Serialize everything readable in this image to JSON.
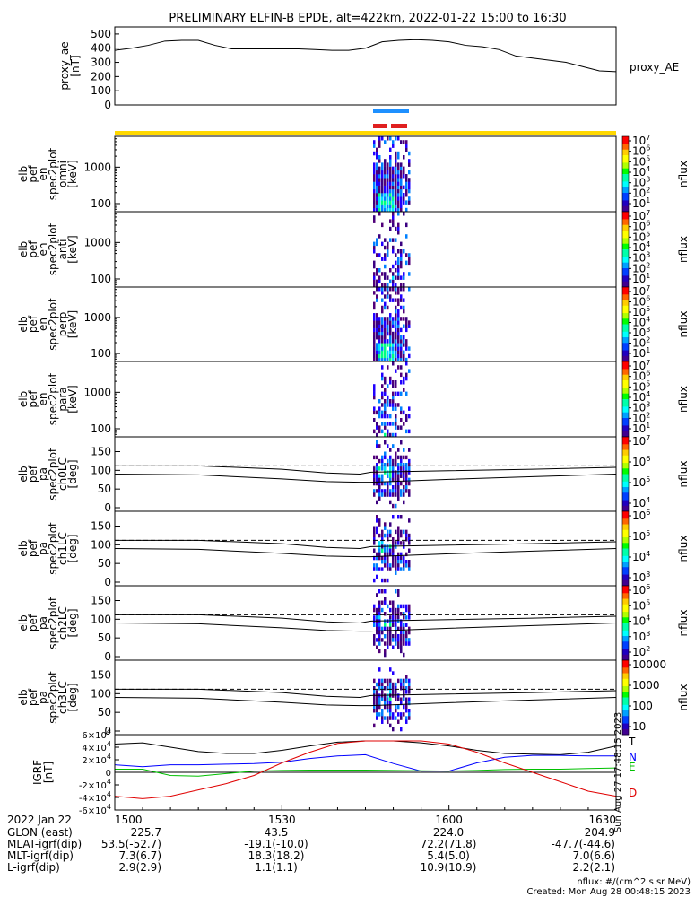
{
  "title": "PRELIMINARY ELFIN-B EPDE, alt=422km, 2022-01-22 15:00 to 16:30",
  "footer": {
    "date_label": "2022 Jan 22",
    "rows": [
      {
        "label": "GLON (east)",
        "values": [
          "225.7",
          "43.5",
          "224.0",
          "204.9"
        ]
      },
      {
        "label": "MLAT-igrf(dip)",
        "values": [
          "53.5(-52.7)",
          "-19.1(-10.0)",
          "72.2(71.8)",
          "-47.7(-44.6)"
        ]
      },
      {
        "label": "MLT-igrf(dip)",
        "values": [
          "7.3(6.7)",
          "18.3(18.2)",
          "5.4(5.0)",
          "7.0(6.6)"
        ]
      },
      {
        "label": "L-igrf(dip)",
        "values": [
          "2.9(2.9)",
          "1.1(1.1)",
          "10.9(10.9)",
          "2.2(2.1)"
        ]
      }
    ],
    "time_ticks": [
      "1500",
      "1530",
      "1600",
      "1630"
    ],
    "nflux_units": "nflux: #/(cm^2 s sr MeV)",
    "created": "Created: Mon Aug 28 00:48:15 2023",
    "side_stamp": "Sun Aug 27 17:48:15 2023"
  },
  "colors": {
    "orbit_bar": "#ffd800",
    "blue_bar": "#1e90ff",
    "red_bar": "#e02020",
    "igrf_t": "#000000",
    "igrf_n": "#0000ff",
    "igrf_e": "#00c000",
    "igrf_d": "#e00000"
  },
  "chart_data": [
    {
      "type": "line",
      "panel": "proxy_ae",
      "ylabel": [
        "proxy_ae",
        "[nT]"
      ],
      "legend": "proxy_AE",
      "yticks": [
        "500",
        "400",
        "300",
        "200",
        "100",
        "0"
      ],
      "ylim": [
        0,
        550
      ],
      "x_minutes": [
        0,
        3,
        6,
        9,
        12,
        15,
        18,
        21,
        24,
        27,
        30,
        33,
        36,
        39,
        42,
        45,
        48,
        51,
        54,
        57,
        60,
        63,
        66,
        69,
        72,
        75,
        78,
        81,
        84,
        87,
        90
      ],
      "values": [
        385,
        400,
        420,
        450,
        455,
        455,
        420,
        395,
        395,
        395,
        395,
        395,
        390,
        385,
        385,
        400,
        445,
        455,
        460,
        455,
        445,
        420,
        410,
        390,
        345,
        330,
        315,
        300,
        270,
        240,
        235
      ]
    },
    {
      "type": "heatmap",
      "panel": "omni",
      "ylabel": [
        "elb",
        "pef",
        "en",
        "spec2plot",
        "omni",
        "[keV]"
      ],
      "yticks": [
        "1000",
        "100"
      ],
      "colorbar": {
        "label": "nflux",
        "ticks": [
          "10^7",
          "10^6",
          "10^5",
          "10^4",
          "10^3",
          "10^2",
          "10^1"
        ]
      }
    },
    {
      "type": "heatmap",
      "panel": "anti",
      "ylabel": [
        "elb",
        "pef",
        "en",
        "spec2plot",
        "anti",
        "[keV]"
      ],
      "yticks": [
        "1000",
        "100"
      ],
      "colorbar": {
        "label": "nflux",
        "ticks": [
          "10^7",
          "10^6",
          "10^5",
          "10^4",
          "10^3",
          "10^2",
          "10^1"
        ]
      }
    },
    {
      "type": "heatmap",
      "panel": "perp",
      "ylabel": [
        "elb",
        "pef",
        "en",
        "spec2plot",
        "perp",
        "[keV]"
      ],
      "yticks": [
        "1000",
        "100"
      ],
      "colorbar": {
        "label": "nflux",
        "ticks": [
          "10^7",
          "10^6",
          "10^5",
          "10^4",
          "10^3",
          "10^2",
          "10^1"
        ]
      }
    },
    {
      "type": "heatmap",
      "panel": "para",
      "ylabel": [
        "elb",
        "pef",
        "en",
        "spec2plot",
        "para",
        "[keV]"
      ],
      "yticks": [
        "1000",
        "100"
      ],
      "colorbar": {
        "label": "nflux",
        "ticks": [
          "10^7",
          "10^6",
          "10^5",
          "10^4",
          "10^3",
          "10^2",
          "10^1"
        ]
      }
    },
    {
      "type": "heatmap",
      "panel": "ch0LC",
      "ylabel": [
        "elb",
        "pef",
        "pa",
        "spec2plot",
        "ch0LC",
        "[deg]"
      ],
      "yticks": [
        "150",
        "100",
        "50",
        "0"
      ],
      "colorbar": {
        "label": "nflux",
        "ticks": [
          "10^7",
          "10^6",
          "10^5",
          "10^4"
        ]
      }
    },
    {
      "type": "heatmap",
      "panel": "ch1LC",
      "ylabel": [
        "elb",
        "pef",
        "pa",
        "spec2plot",
        "ch1LC",
        "[deg]"
      ],
      "yticks": [
        "150",
        "100",
        "50",
        "0"
      ],
      "colorbar": {
        "label": "nflux",
        "ticks": [
          "10^6",
          "10^5",
          "10^4",
          "10^3"
        ]
      }
    },
    {
      "type": "heatmap",
      "panel": "ch2LC",
      "ylabel": [
        "elb",
        "pef",
        "pa",
        "spec2plot",
        "ch2LC",
        "[deg]"
      ],
      "yticks": [
        "150",
        "100",
        "50",
        "0"
      ],
      "colorbar": {
        "label": "nflux",
        "ticks": [
          "10^6",
          "10^5",
          "10^4",
          "10^3",
          "10^2"
        ]
      }
    },
    {
      "type": "heatmap",
      "panel": "ch3LC",
      "ylabel": [
        "elb",
        "pef",
        "pa",
        "spec2plot",
        "ch3LC",
        "[deg]"
      ],
      "yticks": [
        "150",
        "100",
        "50",
        "0"
      ],
      "colorbar": {
        "label": "nflux",
        "ticks": [
          "10000",
          "1000",
          "100",
          "10"
        ]
      }
    },
    {
      "type": "line",
      "panel": "igrf",
      "ylabel": [
        "IGRF",
        "[nT]"
      ],
      "yticks": [
        "6×10^4",
        "4×10^4",
        "2×10^4",
        "0",
        "-2×10^4",
        "-4×10^4",
        "-6×10^4"
      ],
      "ylim": [
        -60000,
        60000
      ],
      "x_minutes": [
        0,
        5,
        10,
        15,
        20,
        25,
        30,
        35,
        40,
        45,
        50,
        55,
        60,
        65,
        70,
        75,
        80,
        85,
        90
      ],
      "series": [
        {
          "name": "T",
          "values": [
            45000,
            47000,
            40000,
            33000,
            30000,
            30000,
            35000,
            42000,
            48000,
            50000,
            50000,
            47000,
            42000,
            35000,
            30000,
            29000,
            28000,
            32000,
            42000
          ]
        },
        {
          "name": "N",
          "values": [
            12000,
            9000,
            12000,
            12000,
            13000,
            14000,
            16000,
            22000,
            26000,
            28000,
            14000,
            2000,
            2000,
            15000,
            24000,
            27000,
            27000,
            26000,
            26000
          ]
        },
        {
          "name": "E",
          "values": [
            5000,
            5000,
            -5000,
            -6000,
            -2000,
            2000,
            3000,
            3500,
            3500,
            3500,
            3000,
            2500,
            2000,
            3000,
            4500,
            5000,
            5000,
            6000,
            7000
          ]
        },
        {
          "name": "D",
          "values": [
            -38000,
            -42000,
            -38000,
            -28000,
            -18000,
            -5000,
            15000,
            32000,
            46000,
            50000,
            50000,
            50000,
            45000,
            32000,
            15000,
            0,
            -15000,
            -30000,
            -38000
          ]
        }
      ]
    }
  ]
}
